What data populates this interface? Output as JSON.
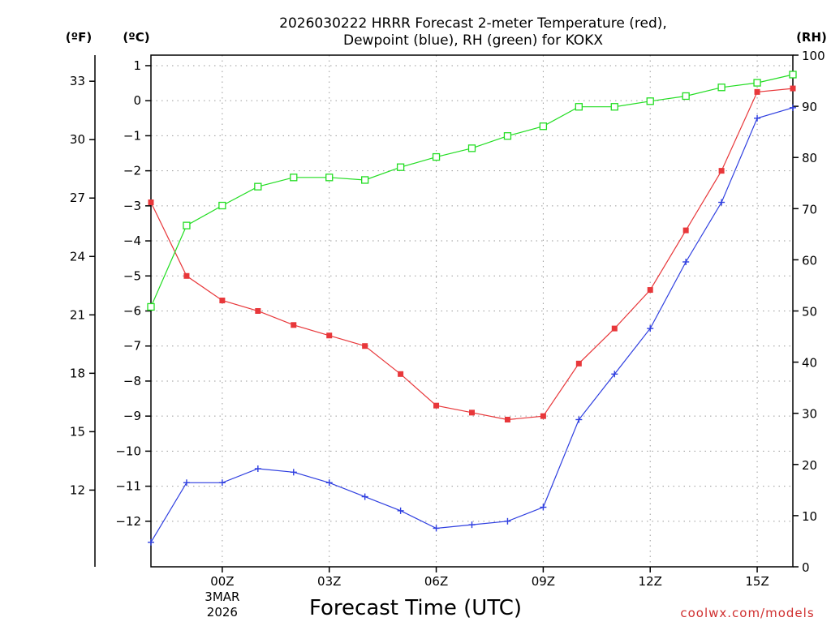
{
  "chart_data": {
    "type": "line",
    "title_line1": "2026030222 HRRR Forecast 2-meter Temperature (red),",
    "title_line2": "Dewpoint (blue), RH (green) for KOKX",
    "xlabel": "Forecast Time (UTC)",
    "credit": "coolwx.com/models",
    "units": {
      "fahrenheit": "(ºF)",
      "celsius": "(ºC)",
      "rh": "(RH)"
    },
    "x_hours": [
      -2,
      -1,
      0,
      1,
      2,
      3,
      4,
      5,
      6,
      7,
      8,
      9,
      10,
      11,
      12,
      13,
      14,
      15,
      16
    ],
    "xlim": [
      -2,
      16
    ],
    "x_ticks": [
      {
        "hour": 0,
        "label": "00Z",
        "sub1": "3MAR",
        "sub2": "2026"
      },
      {
        "hour": 3,
        "label": "03Z"
      },
      {
        "hour": 6,
        "label": "06Z"
      },
      {
        "hour": 9,
        "label": "09Z"
      },
      {
        "hour": 12,
        "label": "12Z"
      },
      {
        "hour": 15,
        "label": "15Z"
      }
    ],
    "celsius_axis": {
      "ylim": [
        -13.3,
        1.3
      ],
      "ticks": [
        1,
        0,
        -1,
        -2,
        -3,
        -4,
        -5,
        -6,
        -7,
        -8,
        -9,
        -10,
        -11,
        -12
      ],
      "labels": [
        "1",
        "0",
        "−1",
        "−2",
        "−3",
        "−4",
        "−5",
        "−6",
        "−7",
        "−8",
        "−9",
        "−10",
        "−11",
        "−12"
      ]
    },
    "fahrenheit_axis": {
      "ticks": [
        33,
        30,
        27,
        24,
        21,
        18,
        15,
        12
      ]
    },
    "rh_axis": {
      "ylim": [
        0,
        100
      ],
      "ticks": [
        100,
        90,
        80,
        70,
        60,
        50,
        40,
        30,
        20,
        10,
        0
      ]
    },
    "series": [
      {
        "name": "Temperature",
        "axis": "celsius",
        "color": "#e8373a",
        "marker": "filled-square",
        "values": [
          -2.9,
          -5.0,
          -5.7,
          -6.0,
          -6.4,
          -6.7,
          -7.0,
          -7.8,
          -8.7,
          -8.9,
          -9.1,
          -9.0,
          -7.5,
          -6.5,
          -5.4,
          -3.7,
          -2.0,
          0.25,
          0.35
        ]
      },
      {
        "name": "Dewpoint",
        "axis": "celsius",
        "color": "#2f3fe0",
        "marker": "plus",
        "values": [
          -12.6,
          -10.9,
          -10.9,
          -10.5,
          -10.6,
          -10.9,
          -11.3,
          -11.7,
          -12.2,
          -12.1,
          -12.0,
          -11.6,
          -9.1,
          -7.8,
          -6.5,
          -4.6,
          -2.9,
          -0.5,
          -0.2
        ]
      },
      {
        "name": "RH",
        "axis": "rh",
        "color": "#22dd22",
        "marker": "hollow-square",
        "values": [
          50.8,
          66.7,
          70.6,
          74.3,
          76.1,
          76.1,
          75.6,
          78.1,
          80.1,
          81.8,
          84.2,
          86.1,
          89.9,
          89.9,
          91.0,
          92.0,
          93.7,
          94.6,
          96.2
        ]
      }
    ]
  }
}
